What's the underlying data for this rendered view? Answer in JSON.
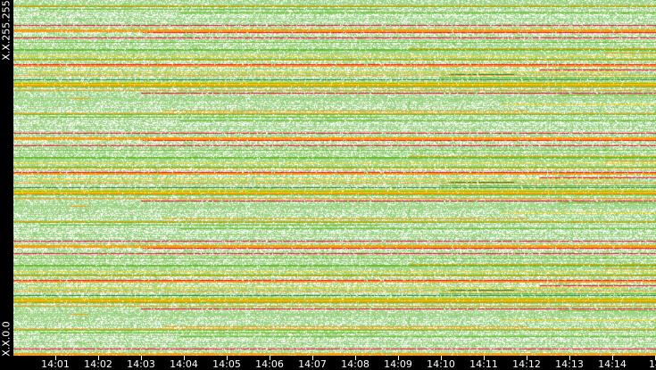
{
  "chart_data": {
    "type": "heatmap",
    "title": "",
    "xlabel": "",
    "ylabel": "",
    "y_labels": {
      "top": "X.X.255.255",
      "bottom": "X.X.0.0"
    },
    "x_ticks": [
      "14:01",
      "14:02",
      "14:03",
      "14:04",
      "14:05",
      "14:06",
      "14:07",
      "14:08",
      "14:09",
      "14:10",
      "14:11",
      "14:12",
      "14:13",
      "14:14",
      "14"
    ],
    "color_scale": [
      "#ffffff",
      "#a8d890",
      "#8cc870",
      "#66bb22",
      "#2e7d32",
      "#ffd000",
      "#ff9900",
      "#ff0033"
    ],
    "grid": false,
    "legend": "none"
  }
}
